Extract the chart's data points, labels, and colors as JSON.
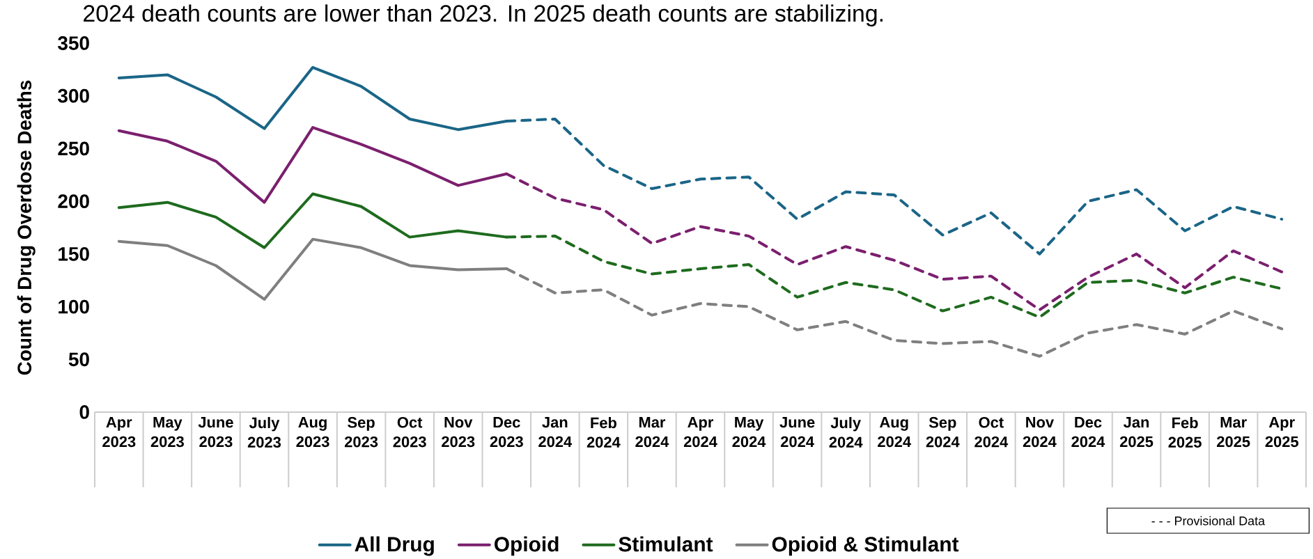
{
  "chart_data": {
    "type": "line",
    "title": "2024 death counts are lower than 2023. In 2025 death counts are stabilizing.",
    "ylabel": "Count of Drug Overdose Deaths",
    "annotations": [
      "- - - Provisional Data"
    ],
    "categories": [
      "Apr 2023",
      "May 2023",
      "June 2023",
      "July 2023",
      "Aug 2023",
      "Sep 2023",
      "Oct 2023",
      "Nov 2023",
      "Dec 2023",
      "Jan 2024",
      "Feb 2024",
      "Mar 2024",
      "Apr 2024",
      "May 2024",
      "June 2024",
      "July 2024",
      "Aug 2024",
      "Sep 2024",
      "Oct 2024",
      "Nov 2024",
      "Dec 2024",
      "Jan 2025",
      "Feb 2025",
      "Mar 2025",
      "Apr 2025"
    ],
    "ylim": [
      0,
      350
    ],
    "yticks": [
      0,
      50,
      100,
      150,
      200,
      250,
      300,
      350
    ],
    "legend": "bottom",
    "series": [
      {
        "name": "All Drug",
        "color": "#1a6587",
        "line_style": "solid",
        "values": [
          317,
          320,
          299,
          269,
          327,
          309,
          278,
          268,
          276,
          null,
          null,
          null,
          null,
          null,
          null,
          null,
          null,
          null,
          null,
          null,
          null,
          null,
          null,
          null,
          null
        ]
      },
      {
        "name": "Opioid",
        "color": "#7b1f6e",
        "line_style": "solid",
        "values": [
          267,
          257,
          238,
          199,
          270,
          254,
          236,
          215,
          226,
          null,
          null,
          null,
          null,
          null,
          null,
          null,
          null,
          null,
          null,
          null,
          null,
          null,
          null,
          null,
          null
        ]
      },
      {
        "name": "Stimulant",
        "color": "#1e6b1e",
        "line_style": "solid",
        "values": [
          194,
          199,
          185,
          156,
          207,
          195,
          166,
          172,
          166,
          null,
          null,
          null,
          null,
          null,
          null,
          null,
          null,
          null,
          null,
          null,
          null,
          null,
          null,
          null,
          null
        ]
      },
      {
        "name": "Opioid & Stimulant",
        "color": "#7f7f7f",
        "line_style": "solid",
        "values": [
          162,
          158,
          139,
          107,
          164,
          156,
          139,
          135,
          136,
          null,
          null,
          null,
          null,
          null,
          null,
          null,
          null,
          null,
          null,
          null,
          null,
          null,
          null,
          null,
          null
        ]
      },
      {
        "color": "#1a6587",
        "line_style": "dashed",
        "values": [
          null,
          null,
          null,
          null,
          null,
          null,
          null,
          null,
          276,
          278,
          234,
          212,
          221,
          223,
          183,
          209,
          206,
          168,
          189,
          150,
          200,
          211,
          172,
          195,
          183
        ]
      },
      {
        "color": "#7b1f6e",
        "line_style": "dashed",
        "values": [
          null,
          null,
          null,
          null,
          null,
          null,
          null,
          null,
          226,
          203,
          192,
          160,
          176,
          167,
          140,
          157,
          144,
          126,
          129,
          97,
          128,
          150,
          118,
          153,
          133
        ]
      },
      {
        "color": "#1e6b1e",
        "line_style": "dashed",
        "values": [
          null,
          null,
          null,
          null,
          null,
          null,
          null,
          null,
          166,
          167,
          143,
          131,
          136,
          140,
          109,
          123,
          116,
          96,
          109,
          90,
          123,
          125,
          113,
          128,
          117
        ]
      },
      {
        "color": "#7f7f7f",
        "line_style": "dashed",
        "values": [
          null,
          null,
          null,
          null,
          null,
          null,
          null,
          null,
          136,
          113,
          116,
          92,
          103,
          100,
          78,
          86,
          68,
          65,
          67,
          53,
          75,
          83,
          74,
          96,
          79
        ]
      }
    ]
  }
}
